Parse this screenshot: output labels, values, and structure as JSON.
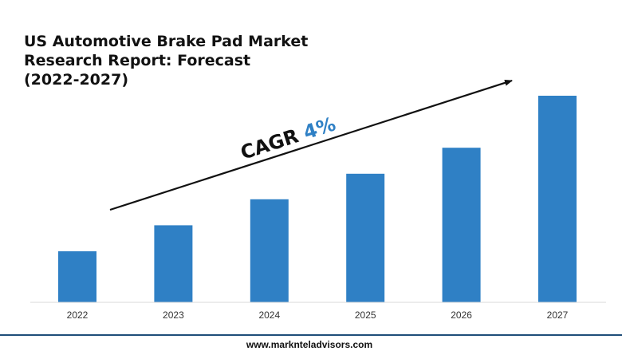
{
  "chart_data": {
    "type": "bar",
    "title_lines": [
      "US Automotive Brake Pad Market",
      "Research Report: Forecast",
      "(2022-2027)"
    ],
    "categories": [
      "2022",
      "2023",
      "2024",
      "2025",
      "2026",
      "2027"
    ],
    "values": [
      1.0,
      1.51,
      2.02,
      2.52,
      3.03,
      4.05
    ],
    "ylim": [
      0,
      4.3
    ],
    "bar_color": "#2F80C5",
    "grid": false,
    "annotation": {
      "label": "CAGR",
      "value": "4%",
      "value_color": "#2F80C5"
    }
  },
  "footer": {
    "website": "www.marknteladvisors.com",
    "rule_color": "#1F4E79"
  }
}
